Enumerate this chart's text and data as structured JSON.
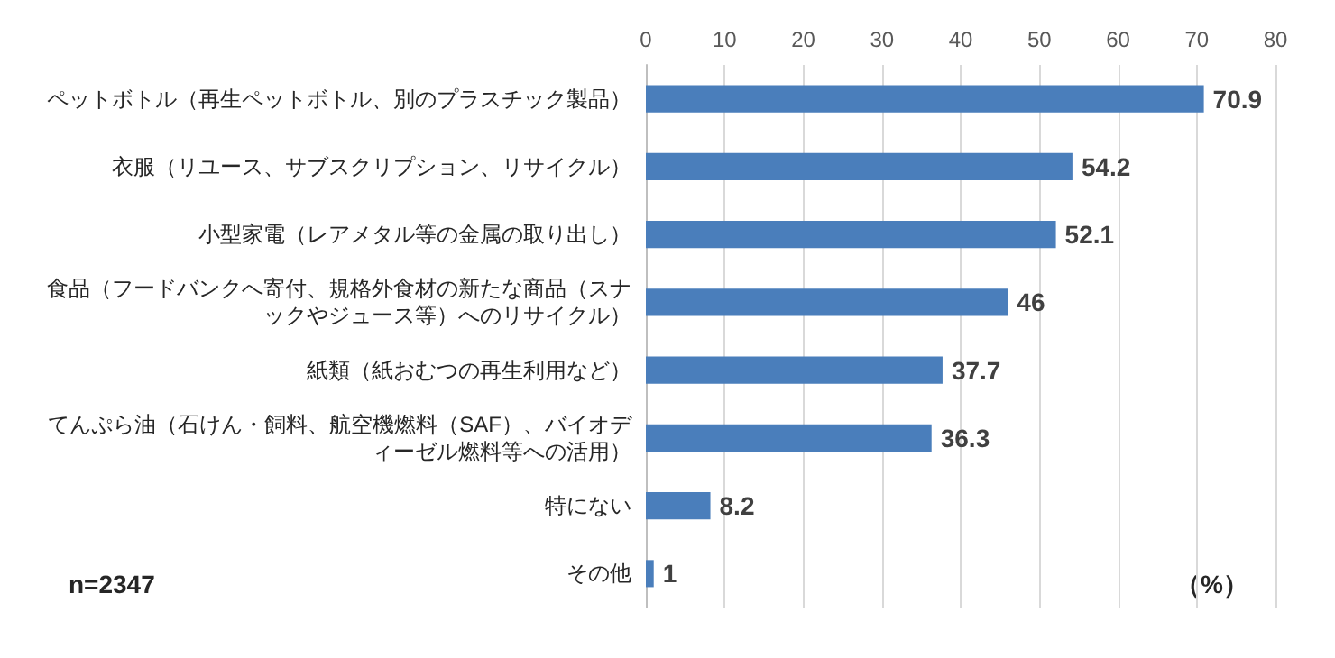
{
  "chart_data": {
    "type": "bar",
    "orientation": "horizontal",
    "categories": [
      "ペットボトル（再生ペットボトル、別のプラスチック製品）",
      "衣服（リユース、サブスクリプション、リサイクル）",
      "小型家電（レアメタル等の金属の取り出し）",
      "食品（フードバンクへ寄付、規格外食材の新たな商品（スナックやジュース等）へのリサイクル）",
      "紙類（紙おむつの再生利用など）",
      "てんぷら油（石けん・飼料、航空機燃料（SAF）、バイオディーゼル燃料等への活用）",
      "特にない",
      "その他"
    ],
    "values": [
      70.9,
      54.2,
      52.1,
      46,
      37.7,
      36.3,
      8.2,
      1
    ],
    "color": "#4a7ebb",
    "xlim": [
      0,
      80
    ],
    "xticks": [
      0,
      10,
      20,
      30,
      40,
      50,
      60,
      70,
      80
    ],
    "grid": "x",
    "data_labels": true,
    "annotations": [
      "n=2347",
      "（%）"
    ]
  }
}
